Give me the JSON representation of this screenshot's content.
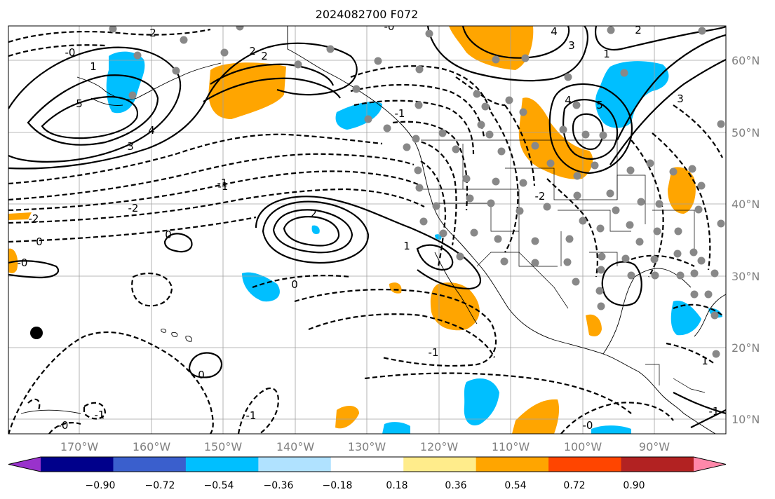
{
  "title": "2024082700 F072",
  "lon_ticks": [
    "170°W",
    "160°W",
    "150°W",
    "140°W",
    "130°W",
    "120°W",
    "110°W",
    "100°W",
    "90°W"
  ],
  "lat_ticks": [
    "60°N",
    "50°N",
    "40°N",
    "30°N",
    "20°N",
    "10°N"
  ],
  "colorbar": {
    "ticks": [
      "−0.90",
      "−0.72",
      "−0.54",
      "−0.36",
      "−0.18",
      "0.18",
      "0.36",
      "0.54",
      "0.72",
      "0.90"
    ],
    "colors": [
      "#9932cc",
      "#00008b",
      "#3a5fcd",
      "#00bfff",
      "#b0e2ff",
      "#ffffff",
      "#ffec8b",
      "#ffa500",
      "#ff4500",
      "#b22222",
      "#ff88aa"
    ]
  },
  "contour_labels": {
    "solid": [
      "1",
      "2",
      "3",
      "4",
      "5",
      "2",
      "2",
      "1",
      "2",
      "3",
      "4",
      "5",
      "4",
      "1",
      "2",
      "1",
      "3",
      "0",
      "0"
    ],
    "dashed": [
      "-0",
      "-2",
      "-1",
      "-1",
      "-2",
      "0",
      "0",
      "-1",
      "-1",
      "-0",
      "-1",
      "-1",
      "-0",
      "-0",
      "-2",
      "-1",
      "-0"
    ]
  },
  "colors": {
    "positive_shade": "#ffa500",
    "negative_shade": "#00bfff",
    "grid": "#a0a0a0",
    "tick_text": "#808080"
  }
}
